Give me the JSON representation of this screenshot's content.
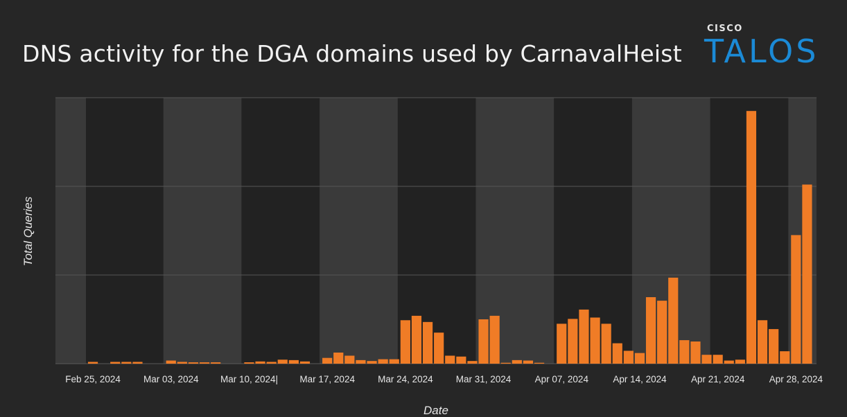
{
  "chart_data": {
    "type": "bar",
    "title": "DNS activity for the DGA domains used by CarnavalHeist",
    "xlabel": "Date",
    "ylabel": "Total Queries",
    "tick_labels": [
      "Feb 25, 2024",
      "Mar 03, 2024",
      "Mar 10, 2024|",
      "Mar 17, 2024",
      "Mar 24, 2024",
      "Mar 31, 2024",
      "Apr 07, 2024",
      "Apr 14, 2024",
      "Apr 21, 2024",
      "Apr 28, 2024"
    ],
    "ylim": [
      0,
      3
    ],
    "grid": true,
    "bar_color": "#f07c26",
    "values": [
      0.02,
      0.0,
      0.02,
      0.02,
      0.02,
      0.0,
      0.0,
      0.035,
      0.02,
      0.015,
      0.015,
      0.015,
      0.0,
      0.0,
      0.015,
      0.025,
      0.02,
      0.045,
      0.04,
      0.025,
      0.0,
      0.065,
      0.125,
      0.09,
      0.04,
      0.03,
      0.05,
      0.05,
      0.49,
      0.54,
      0.47,
      0.35,
      0.09,
      0.08,
      0.03,
      0.5,
      0.54,
      0.01,
      0.04,
      0.035,
      0.01,
      0.0,
      0.45,
      0.505,
      0.61,
      0.52,
      0.45,
      0.23,
      0.145,
      0.12,
      0.75,
      0.71,
      0.97,
      0.265,
      0.25,
      0.1,
      0.1,
      0.035,
      0.045,
      2.85,
      0.49,
      0.39,
      0.14,
      1.45,
      2.02
    ]
  },
  "logo": {
    "small": "CISCO",
    "big": "TALOS"
  }
}
